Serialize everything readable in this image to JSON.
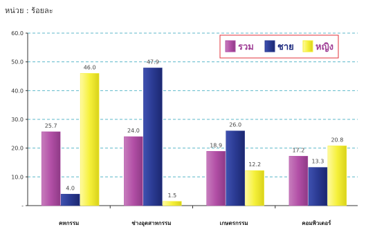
{
  "unit_label": "หน่วย : ร้อยละ",
  "chart_data": {
    "type": "bar",
    "categories": [
      "คหกรรม",
      "ช่างอุตสาหกรรม",
      "เกษตรกรรม",
      "คอมพิวเตอร์"
    ],
    "series": [
      {
        "name": "รวม",
        "values": [
          25.7,
          24.0,
          18.9,
          17.2
        ],
        "color": "#b24fa6"
      },
      {
        "name": "ชาย",
        "values": [
          4.0,
          47.9,
          26.0,
          13.3
        ],
        "color": "#2a3a92"
      },
      {
        "name": "หญิง",
        "values": [
          46.0,
          1.5,
          12.2,
          20.8
        ],
        "color": "#f5f03a"
      }
    ],
    "ylim": [
      0,
      60
    ],
    "yticks": [
      "-",
      "10.0",
      "20.0",
      "30.0",
      "40.0",
      "50.0",
      "60.0"
    ],
    "grid": true,
    "legend_position": "top-right",
    "title": "",
    "xlabel": "",
    "ylabel": ""
  }
}
